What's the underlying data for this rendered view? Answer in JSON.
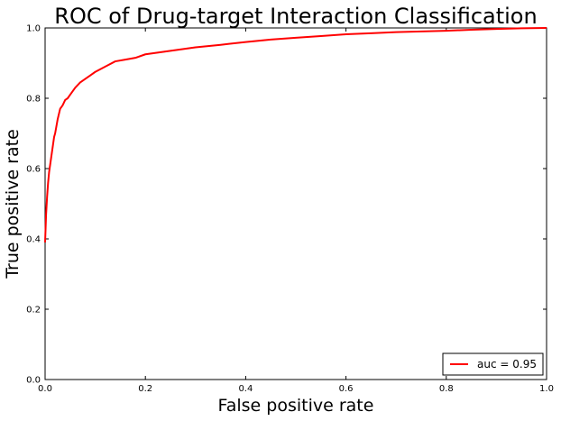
{
  "chart_data": {
    "type": "line",
    "title": "ROC of Drug-target Interaction Classification",
    "xlabel": "False positive rate",
    "ylabel": "True positive rate",
    "xlim": [
      0.0,
      1.0
    ],
    "ylim": [
      0.0,
      1.0
    ],
    "x_ticks": [
      "0.0",
      "0.2",
      "0.4",
      "0.6",
      "0.8",
      "1.0"
    ],
    "y_ticks": [
      "0.0",
      "0.2",
      "0.4",
      "0.6",
      "0.8",
      "1.0"
    ],
    "grid": false,
    "legend": {
      "position": "bottom-right"
    },
    "series": [
      {
        "name": "auc = 0.95",
        "color": "#ff0000",
        "x": [
          0.0,
          0.001,
          0.002,
          0.004,
          0.006,
          0.008,
          0.01,
          0.012,
          0.015,
          0.018,
          0.02,
          0.025,
          0.03,
          0.035,
          0.04,
          0.045,
          0.05,
          0.06,
          0.07,
          0.08,
          0.09,
          0.1,
          0.12,
          0.14,
          0.16,
          0.18,
          0.2,
          0.25,
          0.3,
          0.35,
          0.4,
          0.45,
          0.5,
          0.55,
          0.6,
          0.65,
          0.7,
          0.75,
          0.8,
          0.85,
          0.9,
          0.95,
          1.0
        ],
        "y": [
          0.39,
          0.43,
          0.47,
          0.52,
          0.56,
          0.59,
          0.61,
          0.63,
          0.66,
          0.69,
          0.7,
          0.74,
          0.77,
          0.78,
          0.795,
          0.8,
          0.81,
          0.83,
          0.845,
          0.855,
          0.865,
          0.875,
          0.89,
          0.905,
          0.91,
          0.915,
          0.925,
          0.935,
          0.945,
          0.952,
          0.96,
          0.967,
          0.972,
          0.977,
          0.982,
          0.985,
          0.988,
          0.99,
          0.992,
          0.995,
          0.997,
          0.999,
          1.0
        ]
      }
    ]
  }
}
